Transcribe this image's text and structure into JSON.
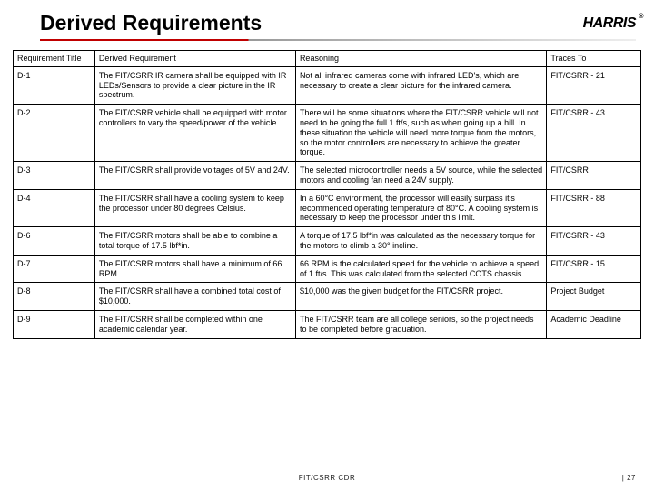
{
  "header": {
    "title": "Derived Requirements",
    "logo_text": "HARRIS"
  },
  "table": {
    "columns": [
      "Requirement Title",
      "Derived Requirement",
      "Reasoning",
      "Traces To"
    ],
    "rows": [
      {
        "title": "D-1",
        "req": "The FIT/CSRR IR camera shall be equipped with IR LEDs/Sensors to provide a clear picture in the IR spectrum.",
        "reason": "Not all infrared cameras come with infrared LED's, which are necessary to create a clear picture for the infrared camera.",
        "trace": "FIT/CSRR - 21"
      },
      {
        "title": "D-2",
        "req": "The FIT/CSRR vehicle shall be equipped with motor controllers to vary the speed/power of the vehicle.",
        "reason": "There will be some situations where the FIT/CSRR vehicle will not need to be going the full 1 ft/s, such as when going up a hill. In these situation the vehicle will need more torque from the motors, so the motor controllers are necessary to achieve the greater torque.",
        "trace": "FIT/CSRR - 43"
      },
      {
        "title": "D-3",
        "req": "The FIT/CSRR shall provide voltages of 5V and 24V.",
        "reason": "The selected microcontroller needs a 5V source, while the selected motors and cooling fan need a 24V supply.",
        "trace": "FIT/CSRR"
      },
      {
        "title": "D-4",
        "req": "The FIT/CSRR shall have a cooling system to keep the processor under 80 degrees Celsius.",
        "reason": "In a 60°C environment, the processor will easily surpass it's recommended operating temperature of 80°C. A cooling system is necessary to keep the processor under this limit.",
        "trace": "FIT/CSRR - 88"
      },
      {
        "title": "D-6",
        "req": "The FIT/CSRR motors shall be able to combine a total torque of 17.5 lbf*in.",
        "reason": "A torque of 17.5 lbf*in was calculated as the necessary torque for the motors to climb a 30° incline.",
        "trace": "FIT/CSRR - 43"
      },
      {
        "title": "D-7",
        "req": "The FIT/CSRR motors shall have a minimum of 66 RPM.",
        "reason": "66 RPM is the calculated speed for the vehicle to achieve a speed of 1 ft/s. This was calculated from the selected COTS chassis.",
        "trace": "FIT/CSRR - 15"
      },
      {
        "title": "D-8",
        "req": "The FIT/CSRR shall have a combined total cost of $10,000.",
        "reason": "$10,000 was the given budget for the FIT/CSRR project.",
        "trace": "Project Budget"
      },
      {
        "title": "D-9",
        "req": "The FIT/CSRR shall be completed within one academic calendar year.",
        "reason": "The FIT/CSRR team are all college seniors, so the project needs to be completed before graduation.",
        "trace": "Academic Deadline"
      }
    ]
  },
  "footer": {
    "center": "FIT/CSRR CDR",
    "right": "| 27"
  }
}
